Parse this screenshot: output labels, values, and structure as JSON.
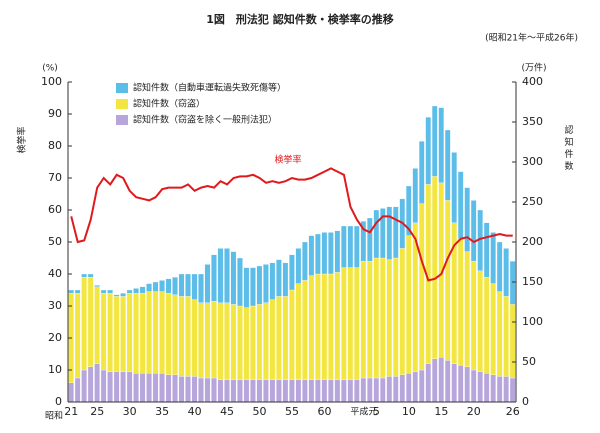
{
  "chart_data": {
    "type": "bar",
    "title": "1図　刑法犯 認知件数・検挙率の推移",
    "subtitle": "(昭和21年～平成26年)",
    "y_unit": "(%)",
    "y2_unit": "(万件)",
    "y_label": "検挙率",
    "y2_label": "認知件数",
    "x_era_label": "昭和",
    "line_label": "検挙率",
    "categories": [
      "21",
      null,
      null,
      null,
      "25",
      null,
      null,
      null,
      null,
      "30",
      null,
      null,
      null,
      null,
      "35",
      null,
      null,
      null,
      null,
      "40",
      null,
      null,
      null,
      null,
      "45",
      null,
      null,
      null,
      null,
      "50",
      null,
      null,
      null,
      null,
      "55",
      null,
      null,
      null,
      null,
      "60",
      null,
      null,
      null,
      "平成元",
      null,
      null,
      null,
      "5",
      null,
      null,
      null,
      null,
      "10",
      null,
      null,
      null,
      null,
      "15",
      null,
      null,
      null,
      null,
      "20",
      null,
      null,
      null,
      null,
      null,
      "26"
    ],
    "ylim": [
      0,
      100
    ],
    "yticks": [
      0,
      10,
      20,
      30,
      40,
      50,
      60,
      70,
      80,
      90,
      100
    ],
    "y2lim": [
      0,
      400
    ],
    "y2ticks": [
      0,
      50,
      100,
      150,
      200,
      250,
      300,
      350,
      400
    ],
    "stacked": true,
    "series": [
      {
        "name": "認知件数（窃盗を除く一般刑法犯）",
        "color": "#b7a6dc",
        "axis": "y2",
        "values": [
          24,
          30,
          40,
          44,
          48,
          40,
          38,
          38,
          38,
          38,
          36,
          36,
          36,
          36,
          36,
          34,
          34,
          32,
          32,
          32,
          30,
          30,
          30,
          28,
          28,
          28,
          28,
          28,
          28,
          28,
          28,
          28,
          28,
          28,
          28,
          28,
          28,
          28,
          28,
          28,
          28,
          28,
          28,
          28,
          28,
          30,
          30,
          30,
          30,
          32,
          32,
          34,
          36,
          38,
          40,
          48,
          54,
          56,
          52,
          48,
          46,
          44,
          40,
          38,
          36,
          34,
          32,
          32,
          30
        ]
      },
      {
        "name": "認知件数（窃盗）",
        "color": "#f3e640",
        "axis": "y2",
        "values": [
          112,
          106,
          116,
          112,
          96,
          96,
          98,
          94,
          94,
          98,
          100,
          100,
          102,
          102,
          102,
          102,
          100,
          100,
          100,
          96,
          94,
          94,
          96,
          96,
          96,
          94,
          92,
          90,
          92,
          94,
          96,
          100,
          104,
          104,
          112,
          120,
          124,
          130,
          132,
          132,
          132,
          134,
          140,
          140,
          140,
          146,
          146,
          150,
          150,
          146,
          148,
          158,
          172,
          186,
          208,
          224,
          228,
          218,
          200,
          176,
          158,
          144,
          136,
          126,
          120,
          114,
          106,
          100,
          92
        ]
      },
      {
        "name": "認知件数（自動車運転過失致死傷等）",
        "color": "#5cbde9",
        "axis": "y2",
        "values": [
          4,
          4,
          4,
          4,
          2,
          4,
          4,
          2,
          4,
          4,
          6,
          8,
          10,
          12,
          14,
          18,
          22,
          28,
          28,
          32,
          36,
          48,
          58,
          68,
          68,
          66,
          60,
          50,
          48,
          48,
          48,
          46,
          46,
          42,
          44,
          44,
          48,
          50,
          50,
          52,
          52,
          52,
          52,
          52,
          52,
          50,
          54,
          60,
          62,
          66,
          64,
          62,
          62,
          68,
          78,
          84,
          88,
          94,
          88,
          88,
          84,
          80,
          76,
          76,
          68,
          64,
          62,
          60,
          54
        ]
      }
    ],
    "line": {
      "name": "検挙率",
      "color": "#e0191c",
      "axis": "y",
      "values": [
        58,
        50,
        50.5,
        57,
        67,
        70,
        68,
        71,
        70,
        66,
        64,
        63.5,
        63,
        64,
        66.5,
        67,
        67,
        67,
        68,
        66,
        67,
        67.5,
        67,
        69,
        68,
        70,
        70.5,
        70.5,
        71,
        70,
        68.5,
        69,
        68.5,
        69,
        70,
        69.5,
        69.5,
        70,
        71,
        72,
        73,
        72,
        71,
        61,
        57,
        54,
        53,
        56,
        58,
        58,
        57,
        56,
        54,
        51,
        44,
        38,
        38.5,
        40,
        45,
        49,
        51,
        51.5,
        50,
        51,
        51.5,
        52,
        52.5,
        52,
        52
      ]
    }
  }
}
